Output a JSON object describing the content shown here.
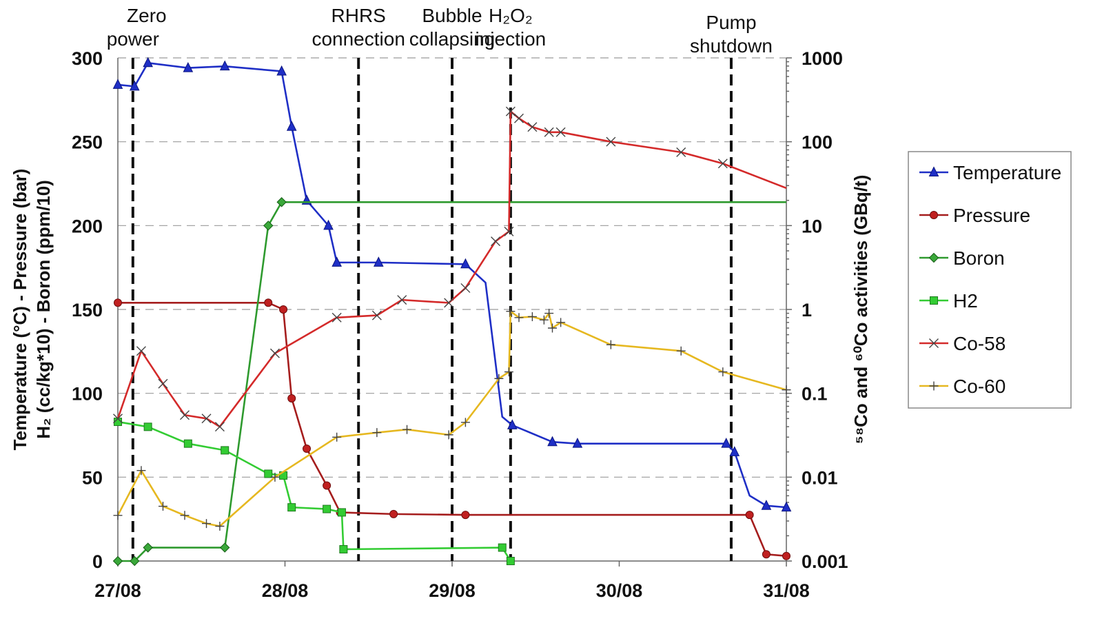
{
  "chart_data": {
    "type": "line",
    "x_ticks": [
      "27/08",
      "28/08",
      "29/08",
      "30/08",
      "31/08"
    ],
    "x_range_days": [
      0,
      4
    ],
    "y_left": {
      "label_line1": "Temperature (°C) - Pressure (bar)",
      "label_line2": "H₂ (cc/kg*10) - Boron (ppm/10)",
      "range": [
        0,
        300
      ],
      "ticks": [
        "0",
        "50",
        "100",
        "150",
        "200",
        "250",
        "300"
      ]
    },
    "y_right": {
      "label": "⁵⁸Co and ⁶⁰Co activities (GBq/t)",
      "scale": "log",
      "range": [
        0.001,
        1000
      ],
      "ticks": [
        "0.001",
        "0.01",
        "0.1",
        "1",
        "10",
        "100",
        "1000"
      ]
    },
    "grid": true,
    "legend_position": "right",
    "events": [
      {
        "lines": [
          "Zero",
          "power"
        ],
        "day": 0.09
      },
      {
        "lines": [
          "RHRS",
          "connection"
        ],
        "day": 1.44
      },
      {
        "lines": [
          "Bubble",
          "collapsing"
        ],
        "day": 2.0
      },
      {
        "lines": [
          "H₂O₂",
          "injection"
        ],
        "day": 2.35
      },
      {
        "lines": [
          "Pump",
          "shutdown"
        ],
        "day": 3.67
      }
    ],
    "series": [
      {
        "name": "Temperature",
        "axis": "left",
        "color": "#1f2fc6",
        "marker": "triangle",
        "points": [
          [
            0,
            284
          ],
          [
            0.1,
            283
          ],
          [
            0.18,
            297
          ],
          [
            0.42,
            294
          ],
          [
            0.64,
            295
          ],
          [
            0.98,
            292
          ],
          [
            1.04,
            259
          ],
          [
            1.13,
            215
          ],
          [
            1.26,
            200
          ],
          [
            1.31,
            178
          ],
          [
            1.56,
            178
          ],
          [
            2.08,
            177
          ],
          [
            2.2,
            166
          ],
          [
            2.3,
            86
          ],
          [
            2.36,
            81
          ],
          [
            2.6,
            71
          ],
          [
            2.75,
            70
          ],
          [
            3.64,
            70
          ],
          [
            3.69,
            65
          ],
          [
            3.78,
            39
          ],
          [
            3.88,
            33
          ],
          [
            4.0,
            32
          ]
        ],
        "marker_idx": [
          0,
          1,
          2,
          3,
          4,
          5,
          6,
          7,
          8,
          9,
          10,
          11,
          14,
          15,
          16,
          17,
          18,
          20,
          21
        ]
      },
      {
        "name": "Pressure",
        "axis": "left",
        "color": "#a51d1d",
        "marker": "circle",
        "points": [
          [
            0,
            154
          ],
          [
            0.9,
            154
          ],
          [
            0.99,
            150
          ],
          [
            1.04,
            97
          ],
          [
            1.13,
            67
          ],
          [
            1.25,
            45
          ],
          [
            1.33,
            29
          ],
          [
            1.65,
            28
          ],
          [
            2.08,
            27.5
          ],
          [
            3.78,
            27.5
          ],
          [
            3.88,
            4
          ],
          [
            4.0,
            3
          ]
        ],
        "marker_idx": [
          0,
          1,
          2,
          3,
          4,
          5,
          6,
          7,
          8,
          9,
          10,
          11
        ]
      },
      {
        "name": "Boron",
        "axis": "left",
        "color": "#2e9a2e",
        "marker": "diamond",
        "points": [
          [
            0,
            0
          ],
          [
            0.1,
            0
          ],
          [
            0.18,
            8
          ],
          [
            0.64,
            8
          ],
          [
            0.9,
            200
          ],
          [
            0.98,
            214
          ],
          [
            1.1,
            214
          ],
          [
            4.0,
            214
          ]
        ],
        "marker_idx": [
          0,
          1,
          2,
          3,
          4,
          5
        ]
      },
      {
        "name": "H2",
        "axis": "left",
        "color": "#33cc33",
        "marker": "square",
        "points": [
          [
            0,
            83
          ],
          [
            0.18,
            80
          ],
          [
            0.42,
            70
          ],
          [
            0.64,
            66
          ],
          [
            0.9,
            52
          ],
          [
            0.99,
            51
          ],
          [
            1.04,
            32
          ],
          [
            1.25,
            31
          ],
          [
            1.34,
            29
          ],
          [
            1.35,
            7
          ],
          [
            2.3,
            8
          ],
          [
            2.35,
            0
          ]
        ],
        "marker_idx": [
          0,
          1,
          2,
          3,
          4,
          5,
          6,
          7,
          8,
          9,
          10,
          11
        ]
      },
      {
        "name": "Co-58",
        "axis": "right",
        "color": "#d42a2a",
        "marker": "x",
        "points": [
          [
            0,
            0.05
          ],
          [
            0.14,
            0.32
          ],
          [
            0.27,
            0.13
          ],
          [
            0.4,
            0.055
          ],
          [
            0.53,
            0.05
          ],
          [
            0.61,
            0.04
          ],
          [
            0.94,
            0.3
          ],
          [
            1.31,
            0.8
          ],
          [
            1.55,
            0.85
          ],
          [
            1.7,
            1.3
          ],
          [
            1.98,
            1.2
          ],
          [
            2.08,
            1.8
          ],
          [
            2.26,
            6.5
          ],
          [
            2.34,
            8.5
          ],
          [
            2.35,
            230
          ],
          [
            2.4,
            190
          ],
          [
            2.48,
            150
          ],
          [
            2.58,
            130
          ],
          [
            2.65,
            130
          ],
          [
            2.95,
            100
          ],
          [
            3.37,
            75
          ],
          [
            3.62,
            55
          ],
          [
            4.0,
            28
          ]
        ],
        "marker_idx": [
          0,
          1,
          2,
          3,
          4,
          5,
          6,
          7,
          8,
          9,
          10,
          11,
          12,
          13,
          14,
          15,
          16,
          17,
          18,
          19,
          20,
          21
        ]
      },
      {
        "name": "Co-60",
        "axis": "right",
        "color": "#e6b820",
        "marker": "plus",
        "points": [
          [
            0,
            0.0035
          ],
          [
            0.14,
            0.012
          ],
          [
            0.27,
            0.0045
          ],
          [
            0.4,
            0.0035
          ],
          [
            0.53,
            0.0028
          ],
          [
            0.61,
            0.0026
          ],
          [
            0.94,
            0.01
          ],
          [
            1.31,
            0.03
          ],
          [
            1.55,
            0.034
          ],
          [
            1.73,
            0.037
          ],
          [
            1.98,
            0.032
          ],
          [
            2.08,
            0.045
          ],
          [
            2.28,
            0.15
          ],
          [
            2.34,
            0.18
          ],
          [
            2.35,
            0.95
          ],
          [
            2.4,
            0.8
          ],
          [
            2.48,
            0.82
          ],
          [
            2.55,
            0.75
          ],
          [
            2.58,
            0.9
          ],
          [
            2.6,
            0.6
          ],
          [
            2.65,
            0.7
          ],
          [
            2.95,
            0.38
          ],
          [
            3.37,
            0.32
          ],
          [
            3.62,
            0.18
          ],
          [
            4.0,
            0.11
          ]
        ],
        "marker_idx": [
          0,
          1,
          2,
          3,
          4,
          5,
          6,
          7,
          8,
          9,
          10,
          11,
          12,
          13,
          14,
          15,
          16,
          17,
          18,
          19,
          20,
          21,
          22,
          23,
          24
        ]
      }
    ]
  }
}
